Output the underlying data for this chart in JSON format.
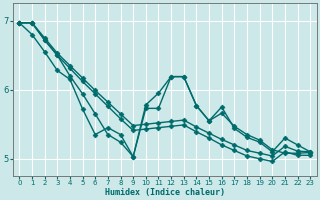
{
  "xlabel": "Humidex (Indice chaleur)",
  "xlim": [
    -0.5,
    23.5
  ],
  "ylim": [
    4.75,
    7.25
  ],
  "yticks": [
    5,
    6,
    7
  ],
  "xticks": [
    0,
    1,
    2,
    3,
    4,
    5,
    6,
    7,
    8,
    9,
    10,
    11,
    12,
    13,
    14,
    15,
    16,
    17,
    18,
    19,
    20,
    21,
    22,
    23
  ],
  "bg_color": "#cce8e8",
  "grid_color": "#ffffff",
  "line_color": "#006b6b",
  "lines": [
    {
      "x": [
        0,
        1,
        2,
        3,
        4,
        5,
        6,
        7,
        8,
        9,
        10,
        11,
        12,
        13,
        14,
        15,
        16,
        17,
        18,
        19,
        20,
        21,
        22,
        23
      ],
      "y": [
        6.97,
        6.97,
        6.75,
        6.53,
        6.35,
        6.17,
        5.99,
        5.82,
        5.65,
        5.48,
        5.5,
        5.52,
        5.54,
        5.56,
        5.46,
        5.37,
        5.28,
        5.2,
        5.12,
        5.08,
        5.04,
        5.18,
        5.11,
        5.1
      ],
      "marker": "D",
      "markersize": 2.5,
      "linewidth": 1.0
    },
    {
      "x": [
        0,
        1,
        2,
        3,
        4,
        5,
        6,
        7,
        8,
        9,
        10,
        11,
        12,
        13,
        14,
        15,
        16,
        17,
        18,
        19,
        20,
        21,
        22,
        23
      ],
      "y": [
        6.97,
        6.97,
        6.72,
        6.5,
        6.31,
        6.12,
        5.94,
        5.76,
        5.58,
        5.41,
        5.43,
        5.45,
        5.47,
        5.49,
        5.39,
        5.3,
        5.2,
        5.12,
        5.04,
        5.0,
        4.96,
        5.1,
        5.05,
        5.05
      ],
      "marker": "D",
      "markersize": 2.5,
      "linewidth": 1.0
    },
    {
      "x": [
        0,
        1,
        2,
        3,
        4,
        5,
        6,
        7,
        8,
        9,
        10,
        11,
        12,
        13,
        14,
        15,
        16,
        17,
        18,
        19,
        20,
        21,
        22,
        23
      ],
      "y": [
        6.97,
        6.97,
        6.72,
        6.5,
        6.2,
        5.94,
        5.65,
        5.35,
        5.24,
        5.03,
        5.78,
        5.95,
        6.19,
        6.19,
        5.77,
        5.55,
        5.66,
        5.47,
        5.35,
        5.27,
        5.13,
        5.08,
        5.08,
        5.09
      ],
      "marker": "D",
      "markersize": 2.5,
      "linewidth": 1.0
    },
    {
      "x": [
        0,
        1,
        2,
        3,
        4,
        5,
        6,
        7,
        8,
        9,
        10,
        11,
        12,
        13,
        14,
        15,
        16,
        17,
        18,
        19,
        20,
        21,
        22,
        23
      ],
      "y": [
        6.97,
        6.8,
        6.55,
        6.28,
        6.15,
        5.72,
        5.35,
        5.45,
        5.35,
        5.03,
        5.73,
        5.73,
        6.19,
        6.19,
        5.77,
        5.55,
        5.75,
        5.44,
        5.31,
        5.24,
        5.1,
        5.3,
        5.2,
        5.1
      ],
      "marker": "D",
      "markersize": 2.5,
      "linewidth": 1.0
    }
  ]
}
